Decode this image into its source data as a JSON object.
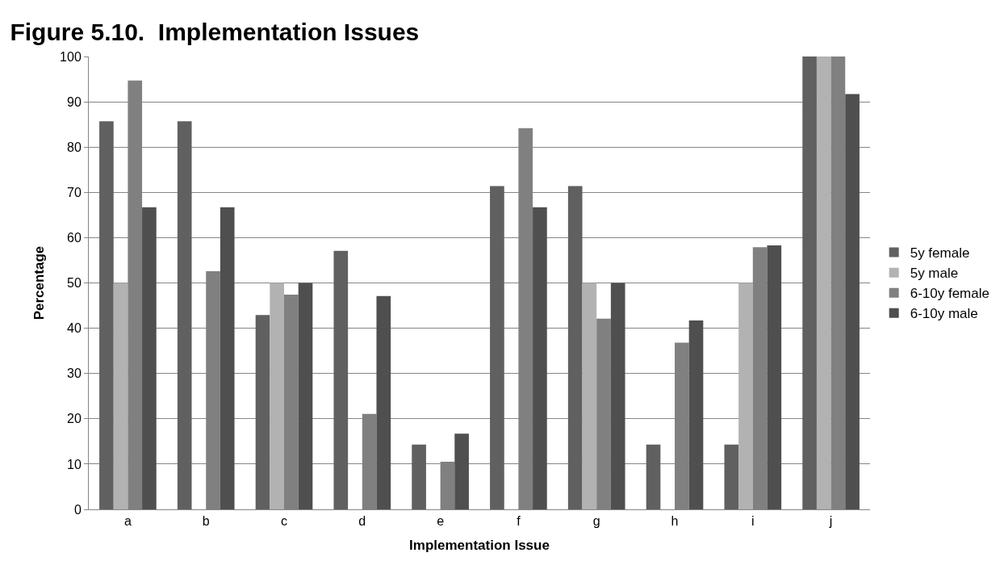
{
  "chart_data": {
    "type": "bar",
    "title": "Figure 5.10.  Implementation Issues",
    "xlabel": "Implementation Issue",
    "ylabel": "Percentage",
    "categories": [
      "a",
      "b",
      "c",
      "d",
      "e",
      "f",
      "g",
      "h",
      "i",
      "j"
    ],
    "series": [
      {
        "name": "5y female",
        "color": "#606060",
        "values": [
          85.7,
          85.7,
          42.9,
          57.1,
          14.3,
          71.4,
          71.4,
          14.3,
          14.3,
          100
        ]
      },
      {
        "name": "5y male",
        "color": "#b2b2b2",
        "values": [
          50,
          0,
          50,
          0,
          0,
          0,
          50,
          0,
          50,
          100
        ]
      },
      {
        "name": "6-10y female",
        "color": "#808080",
        "values": [
          94.7,
          52.6,
          47.4,
          21.1,
          10.5,
          84.2,
          42.1,
          36.8,
          57.9,
          100
        ]
      },
      {
        "name": "6-10y male",
        "color": "#4f4f4f",
        "values": [
          66.7,
          66.7,
          50,
          47.1,
          16.7,
          66.7,
          50,
          41.7,
          58.3,
          91.7
        ]
      }
    ],
    "ylim": [
      0,
      100
    ],
    "yticks": [
      0,
      10,
      20,
      30,
      40,
      50,
      60,
      70,
      80,
      90,
      100
    ],
    "grid": "y",
    "legend": "right"
  }
}
